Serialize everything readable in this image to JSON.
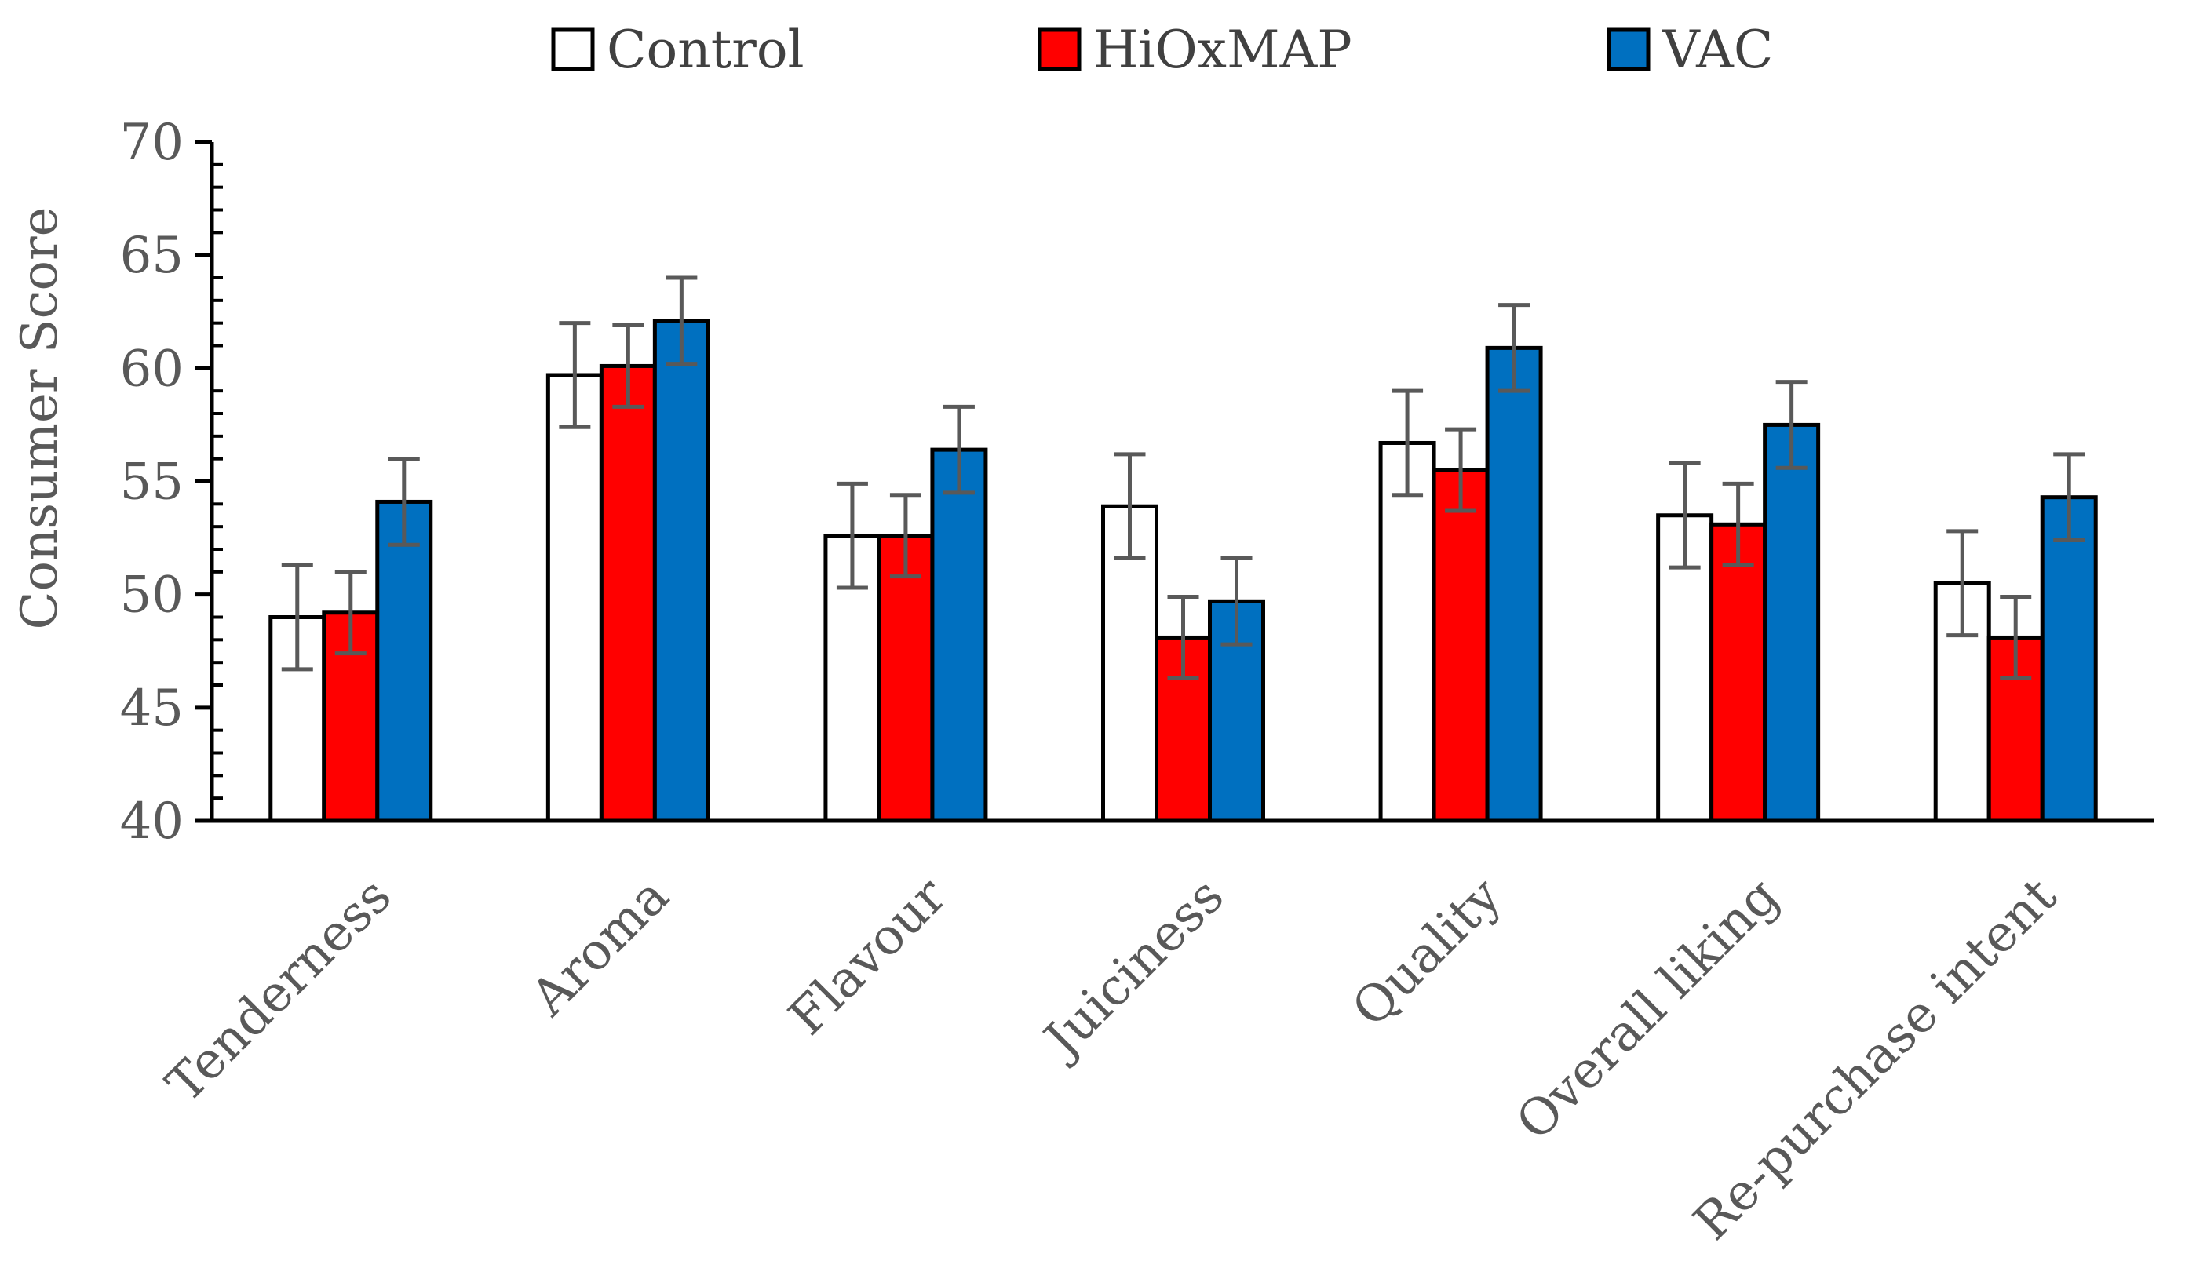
{
  "chart_data": {
    "type": "bar",
    "title": "",
    "xlabel": "",
    "ylabel": "Consumer Score",
    "ylim": [
      40,
      70
    ],
    "yticks": [
      40,
      45,
      50,
      55,
      60,
      65,
      70
    ],
    "categories": [
      "Tenderness",
      "Aroma",
      "Flavour",
      "Juiciness",
      "Quality",
      "Overall liking",
      "Re-purchase intent"
    ],
    "series": [
      {
        "name": "Control",
        "color": "#ffffff",
        "values": [
          49.0,
          59.7,
          52.6,
          53.9,
          56.7,
          53.5,
          50.5
        ],
        "errors": [
          2.3,
          2.3,
          2.3,
          2.3,
          2.3,
          2.3,
          2.3
        ]
      },
      {
        "name": "HiOxMAP",
        "color": "#ff0000",
        "values": [
          49.2,
          60.1,
          52.6,
          48.1,
          55.5,
          53.1,
          48.1
        ],
        "errors": [
          1.8,
          1.8,
          1.8,
          1.8,
          1.8,
          1.8,
          1.8
        ]
      },
      {
        "name": "VAC",
        "color": "#0070c0",
        "values": [
          54.1,
          62.1,
          56.4,
          49.7,
          60.9,
          57.5,
          54.3
        ],
        "errors": [
          1.9,
          1.9,
          1.9,
          1.9,
          1.9,
          1.9,
          1.9
        ]
      }
    ],
    "legend_position": "top-center",
    "grid": false
  }
}
